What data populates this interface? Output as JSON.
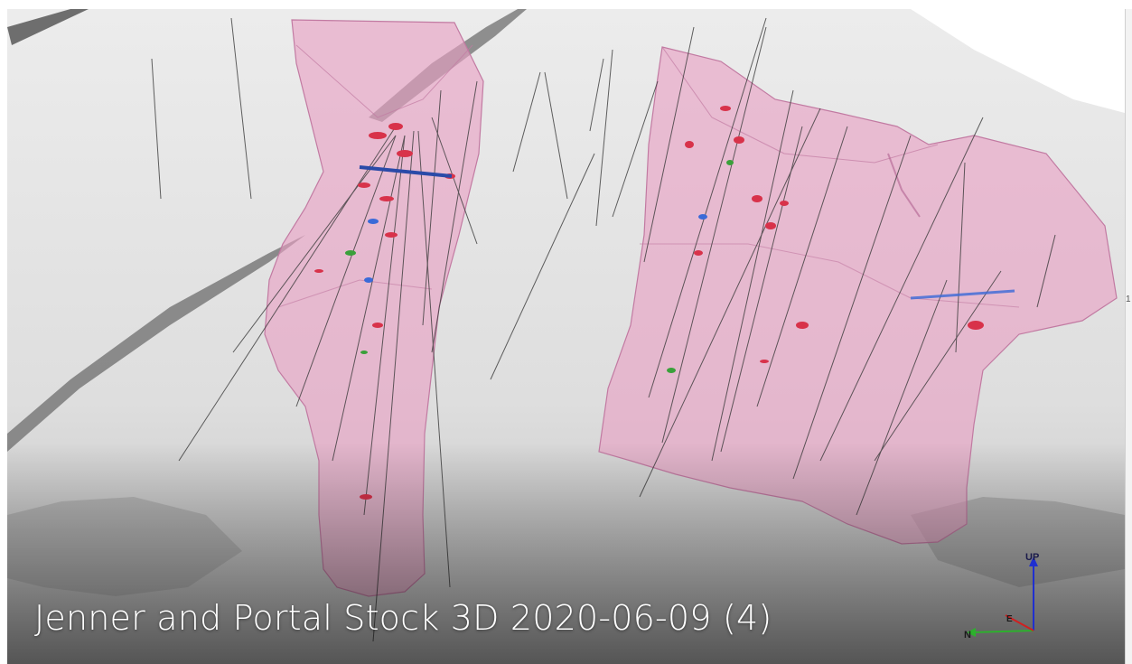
{
  "video": {
    "title": "Jenner and Portal Stock 3D 2020-06-09 (4)"
  },
  "axes": {
    "up_label": "UP",
    "north_label": "N",
    "east_label": "E",
    "up_color": "#1f2fd0",
    "north_color": "#2db02d",
    "east_color": "#d02020"
  },
  "side_panel": {
    "edge_text": "1"
  },
  "colors": {
    "terrain": "#e4e4e4",
    "solid_body": "#e8a0c4",
    "drillhole": "#3a3a3a",
    "assay_red": "#d8324a",
    "assay_blue": "#3a6ad8",
    "assay_green": "#3aa03a"
  }
}
